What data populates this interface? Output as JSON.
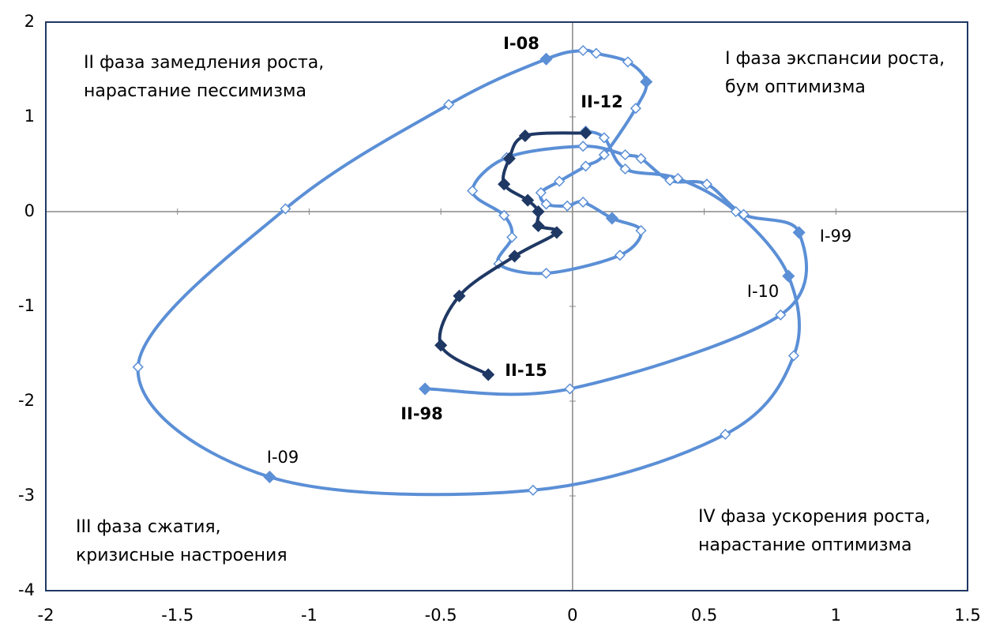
{
  "chart_data": {
    "type": "scatter-line",
    "xlim": [
      -2,
      1.5
    ],
    "xticks": [
      -2,
      -1.5,
      -1,
      -0.5,
      0,
      0.5,
      1,
      1.5
    ],
    "ylim": [
      -4,
      2
    ],
    "yticks": [
      -4,
      -3,
      -2,
      -1,
      0,
      1,
      2
    ],
    "series": [
      {
        "color": "#5b8fd6",
        "x": [
          -0.56,
          -0.01,
          0.79,
          0.86,
          0.65,
          0.51,
          0.37,
          0.26,
          0.2,
          0.04,
          -0.25,
          -0.38,
          -0.26,
          -0.23,
          -0.28,
          -0.1,
          0.18,
          0.26,
          0.15,
          0.04,
          -0.02,
          -0.1,
          -0.12,
          -0.05,
          0.05,
          0.12,
          0.24,
          0.28,
          0.21,
          0.09,
          0.04,
          -0.1,
          -0.47,
          -1.09,
          -1.65,
          -1.15,
          -0.15,
          0.58,
          0.84,
          0.82,
          0.62,
          0.4,
          0.2,
          0.12,
          0.05
        ],
        "values": [
          -1.87,
          -1.87,
          -1.09,
          -0.22,
          -0.03,
          0.29,
          0.33,
          0.56,
          0.6,
          0.69,
          0.57,
          0.22,
          -0.04,
          -0.27,
          -0.55,
          -0.65,
          -0.46,
          -0.2,
          -0.07,
          0.1,
          0.06,
          0.08,
          0.2,
          0.32,
          0.48,
          0.6,
          1.09,
          1.37,
          1.58,
          1.67,
          1.7,
          1.61,
          1.13,
          0.03,
          -1.64,
          -2.8,
          -2.94,
          -2.35,
          -1.52,
          -0.68,
          0.0,
          0.35,
          0.45,
          0.78,
          0.85
        ]
      },
      {
        "color": "#1f3864",
        "x": [
          0.05,
          -0.18,
          -0.24,
          -0.26,
          -0.17,
          -0.13,
          -0.13,
          -0.06,
          -0.22,
          -0.43,
          -0.5,
          -0.32
        ],
        "values": [
          0.83,
          0.8,
          0.56,
          0.29,
          0.12,
          0.0,
          -0.15,
          -0.22,
          -0.47,
          -0.89,
          -1.41,
          -1.72
        ]
      }
    ],
    "point_labels": [
      "I-08",
      "II-12",
      "I-99",
      "I-10",
      "II-15",
      "II-98",
      "I-09"
    ],
    "quadrant_labels": [
      [
        "II фаза замедления роста,",
        "нарастание пессимизма"
      ],
      [
        "I фаза экспансии роста,",
        "бум оптимизма"
      ],
      [
        "III фаза сжатия,",
        "кризисные настроения"
      ],
      [
        "IV фаза ускорения роста,",
        "нарастание оптимизма"
      ]
    ]
  }
}
